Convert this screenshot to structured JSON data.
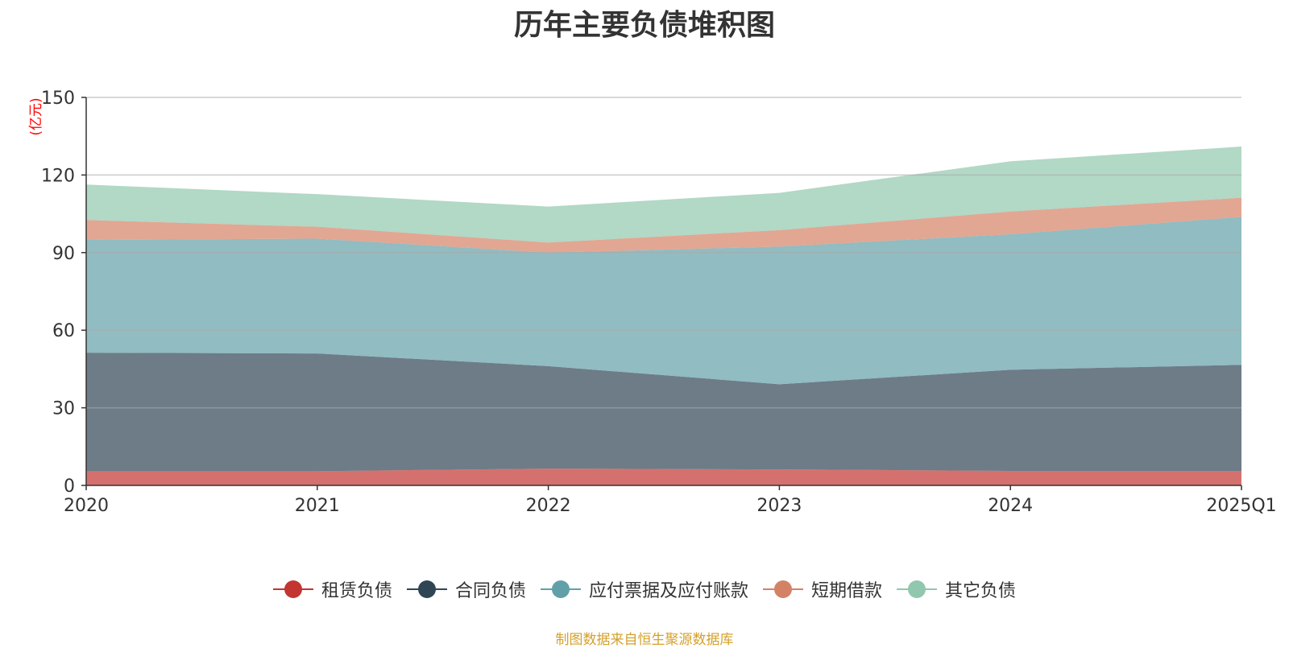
{
  "chart_data": {
    "type": "area",
    "stacked": true,
    "title": "历年主要负债堆积图",
    "ylabel": "(亿元)",
    "xlabel": "",
    "ylim": [
      0,
      150
    ],
    "yticks": [
      0,
      30,
      60,
      90,
      120,
      150
    ],
    "categories": [
      "2020",
      "2021",
      "2022",
      "2023",
      "2024",
      "2025Q1"
    ],
    "grid": true,
    "legend_position": "bottom",
    "series": [
      {
        "name": "租赁负债",
        "color": "#c23531",
        "values": [
          5.5,
          5.5,
          6.5,
          6.2,
          5.6,
          5.6
        ]
      },
      {
        "name": "合同负债",
        "color": "#2f4554",
        "values": [
          45.8,
          45.5,
          39.6,
          32.9,
          39.1,
          41.0
        ]
      },
      {
        "name": "应付票据及应付账款",
        "color": "#61a0a8",
        "values": [
          43.6,
          44.4,
          43.9,
          53.2,
          52.4,
          57.2
        ]
      },
      {
        "name": "短期借款",
        "color": "#d48265",
        "values": [
          7.7,
          4.6,
          3.9,
          6.4,
          8.8,
          7.4
        ]
      },
      {
        "name": "其它负债",
        "color": "#91c7ae",
        "values": [
          13.7,
          12.6,
          13.9,
          14.4,
          19.4,
          19.8
        ]
      }
    ]
  },
  "footer": {
    "source": "制图数据来自恒生聚源数据库"
  }
}
